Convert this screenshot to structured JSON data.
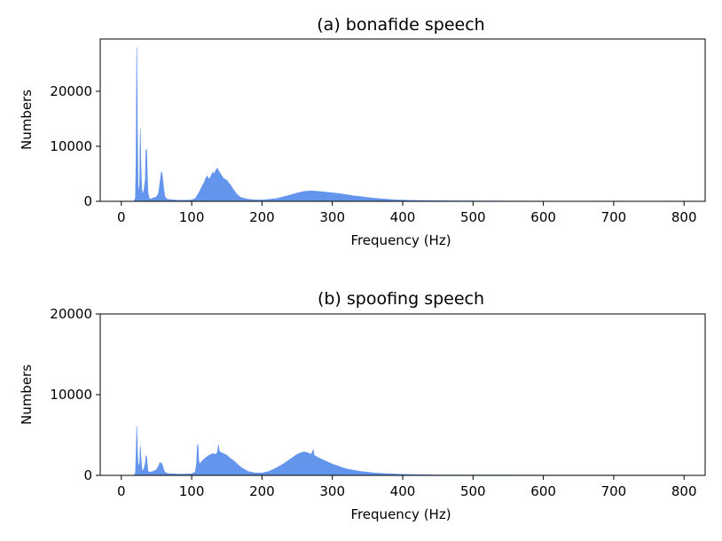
{
  "chart_data": [
    {
      "type": "area",
      "title": "(a) bonafide speech",
      "xlabel": "Frequency (Hz)",
      "ylabel": "Numbers",
      "xlim": [
        -30,
        830
      ],
      "ylim": [
        0,
        29500
      ],
      "xticks": [
        0,
        100,
        200,
        300,
        400,
        500,
        600,
        700,
        800
      ],
      "yticks": [
        0,
        10000,
        20000
      ],
      "color": "#6495ED",
      "grid": false,
      "series": [
        {
          "x": [
            0,
            18,
            20,
            21,
            22,
            23,
            24,
            26,
            27,
            28,
            29,
            30,
            32,
            34,
            35,
            36,
            37,
            38,
            40,
            42,
            45,
            50,
            53,
            55,
            57,
            58,
            60,
            62,
            65,
            70,
            80,
            90,
            100,
            105,
            110,
            115,
            118,
            120,
            122,
            125,
            128,
            130,
            132,
            135,
            137,
            138,
            140,
            142,
            145,
            150,
            155,
            160,
            165,
            170,
            180,
            190,
            200,
            210,
            220,
            230,
            240,
            250,
            260,
            270,
            280,
            290,
            300,
            310,
            320,
            330,
            340,
            350,
            360,
            370,
            380,
            390,
            400,
            420,
            450,
            500,
            550,
            600,
            650,
            700,
            750,
            800
          ],
          "y": [
            0,
            0,
            600,
            8000,
            28000,
            12000,
            1500,
            3000,
            13200,
            6000,
            2500,
            1200,
            2000,
            4000,
            9200,
            9500,
            5000,
            1500,
            500,
            400,
            600,
            800,
            1500,
            3500,
            5400,
            5000,
            2500,
            800,
            400,
            300,
            200,
            200,
            250,
            500,
            1500,
            2800,
            3500,
            4200,
            4600,
            4000,
            4700,
            5300,
            5000,
            5800,
            6000,
            5600,
            5200,
            4800,
            4200,
            3800,
            3000,
            2000,
            1200,
            700,
            400,
            250,
            250,
            350,
            500,
            800,
            1150,
            1500,
            1800,
            1900,
            1800,
            1700,
            1550,
            1400,
            1200,
            1000,
            850,
            700,
            560,
            450,
            360,
            280,
            220,
            160,
            110,
            70,
            50,
            40,
            35,
            30,
            30,
            30
          ]
        }
      ]
    },
    {
      "type": "area",
      "title": "(b) spoofing speech",
      "xlabel": "Frequency (Hz)",
      "ylabel": "Numbers",
      "xlim": [
        -30,
        830
      ],
      "ylim": [
        0,
        20000
      ],
      "xticks": [
        0,
        100,
        200,
        300,
        400,
        500,
        600,
        700,
        800
      ],
      "yticks": [
        0,
        10000,
        20000
      ],
      "color": "#6495ED",
      "grid": false,
      "series": [
        {
          "x": [
            0,
            18,
            20,
            21,
            22,
            23,
            24,
            26,
            27,
            28,
            29,
            30,
            32,
            34,
            35,
            36,
            37,
            38,
            40,
            45,
            50,
            53,
            55,
            58,
            60,
            62,
            65,
            70,
            80,
            90,
            100,
            105,
            107,
            108,
            109,
            110,
            111,
            112,
            115,
            120,
            125,
            130,
            135,
            137,
            138,
            139,
            140,
            145,
            150,
            155,
            160,
            170,
            180,
            190,
            200,
            210,
            220,
            230,
            240,
            250,
            255,
            260,
            265,
            270,
            272,
            273,
            274,
            276,
            280,
            290,
            300,
            310,
            320,
            340,
            360,
            380,
            400,
            420,
            450,
            500,
            550,
            600,
            650,
            700,
            750,
            800
          ],
          "y": [
            0,
            0,
            300,
            2500,
            6100,
            3000,
            1200,
            1500,
            3600,
            2200,
            1000,
            500,
            800,
            1500,
            2400,
            2300,
            1400,
            500,
            400,
            500,
            700,
            1200,
            1600,
            1400,
            800,
            400,
            250,
            200,
            150,
            150,
            200,
            400,
            1500,
            3500,
            3900,
            2000,
            1400,
            1500,
            1800,
            2200,
            2500,
            2700,
            2600,
            3000,
            3800,
            3200,
            2900,
            2700,
            2500,
            2100,
            1800,
            1000,
            500,
            300,
            300,
            500,
            900,
            1400,
            2000,
            2600,
            2800,
            2900,
            2800,
            2600,
            3000,
            3200,
            2500,
            2400,
            2200,
            1800,
            1400,
            1100,
            800,
            500,
            300,
            200,
            130,
            90,
            60,
            45,
            40,
            35,
            35,
            35,
            35,
            35
          ]
        }
      ]
    }
  ]
}
